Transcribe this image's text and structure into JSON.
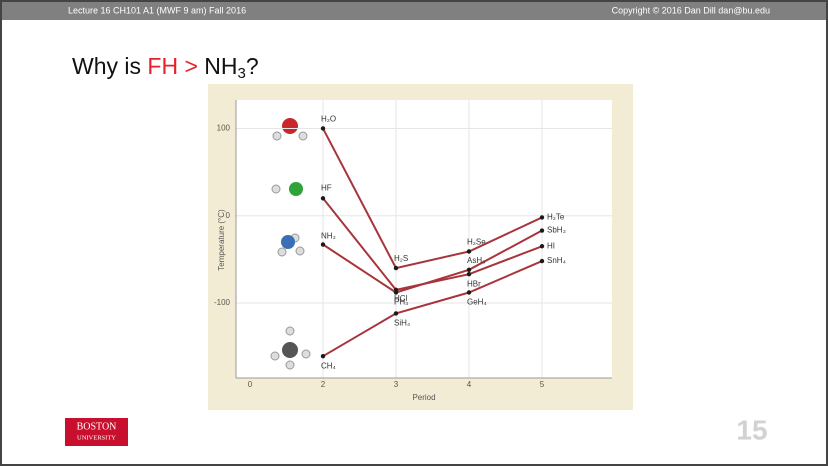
{
  "header": {
    "left": "Lecture 16 CH101 A1 (MWF 9 am) Fall 2016",
    "right": "Copyright © 2016 Dan Dill dan@bu.edu"
  },
  "title_parts": [
    "Why is ",
    "FH >",
    " NH",
    "3",
    "?"
  ],
  "logo": [
    "BOSTON",
    "UNIVERSITY"
  ],
  "page_number": "15",
  "chart_data": {
    "type": "line",
    "xlabel": "Period",
    "ylabel": "Temperature (°C)",
    "categories": [
      "0",
      "2",
      "3",
      "4",
      "5"
    ],
    "ylim": [
      -186,
      112
    ],
    "yticks": [
      100,
      0,
      -100
    ],
    "grid": true,
    "line_color": "#a8343c",
    "point_color": "#1a1a1a",
    "series": [
      {
        "labels": [
          null,
          "H₂O",
          "H₂S",
          "H₂Se",
          "H₂Te"
        ],
        "values": [
          null,
          100,
          -60,
          -41,
          -2
        ]
      },
      {
        "labels": [
          null,
          "HF",
          "HCl",
          "HBr",
          "HI"
        ],
        "values": [
          null,
          20,
          -85,
          -67,
          -35
        ]
      },
      {
        "labels": [
          null,
          "NH₃",
          "PH₃",
          "AsH₃",
          "SbH₃"
        ],
        "values": [
          null,
          -33,
          -88,
          -62,
          -17
        ]
      },
      {
        "labels": [
          null,
          "CH₄",
          "SiH₄",
          "GeH₄",
          "SnH₄"
        ],
        "values": [
          null,
          -161,
          -112,
          -88,
          -52
        ]
      }
    ]
  }
}
